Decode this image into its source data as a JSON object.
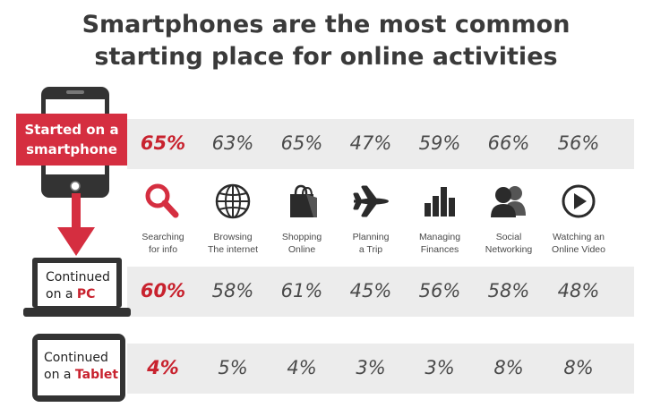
{
  "title": {
    "line1": "Smartphones are the most common",
    "line2": "starting place for online activities"
  },
  "rows": {
    "smartphone": {
      "label_line1": "Started on a",
      "label_line2": "smartphone"
    },
    "pc": {
      "label_line1": "Continued",
      "label_prefix": "on a ",
      "label_device": "PC"
    },
    "tablet": {
      "label_line1": "Continued",
      "label_prefix": "on a ",
      "label_device": "Tablet"
    }
  },
  "colors": {
    "accent": "#d52e40",
    "band": "#ececec",
    "text": "#4a4a4a"
  },
  "chart_data": {
    "type": "table",
    "title": "Smartphones are the most common starting place for online activities",
    "categories": [
      {
        "line1": "Searching",
        "line2": "for info",
        "icon": "magnifier-icon"
      },
      {
        "line1": "Browsing",
        "line2": "The internet",
        "icon": "globe-icon"
      },
      {
        "line1": "Shopping",
        "line2": "Online",
        "icon": "shopping-bag-icon"
      },
      {
        "line1": "Planning",
        "line2": "a Trip",
        "icon": "airplane-icon"
      },
      {
        "line1": "Managing",
        "line2": "Finances",
        "icon": "bar-chart-icon"
      },
      {
        "line1": "Social",
        "line2": "Networking",
        "icon": "people-icon"
      },
      {
        "line1": "Watching an",
        "line2": "Online Video",
        "icon": "play-icon"
      }
    ],
    "series": [
      {
        "name": "Started on a smartphone",
        "values": [
          65,
          63,
          65,
          47,
          59,
          66,
          56
        ],
        "display": [
          "65%",
          "63%",
          "65%",
          "47%",
          "59%",
          "66%",
          "56%"
        ]
      },
      {
        "name": "Continued on a PC",
        "values": [
          60,
          58,
          61,
          45,
          56,
          58,
          48
        ],
        "display": [
          "60%",
          "58%",
          "61%",
          "45%",
          "56%",
          "58%",
          "48%"
        ]
      },
      {
        "name": "Continued on a Tablet",
        "values": [
          4,
          5,
          4,
          3,
          3,
          8,
          8
        ],
        "display": [
          "4%",
          "5%",
          "4%",
          "3%",
          "3%",
          "8%",
          "8%"
        ]
      }
    ]
  }
}
